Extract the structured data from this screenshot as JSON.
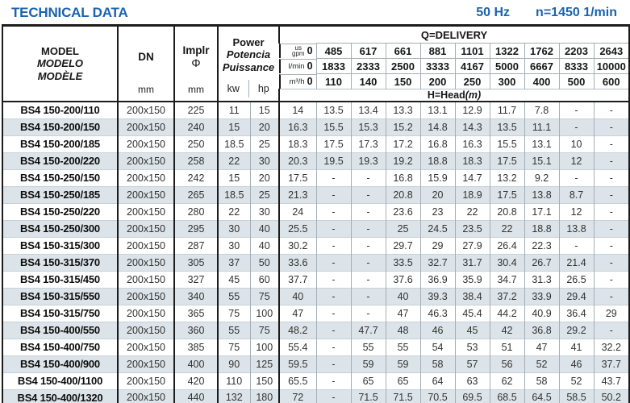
{
  "page": {
    "title": "TECHNICAL DATA",
    "frequency": "50 Hz",
    "speed": "n=1450 1/min",
    "accent_color": "#1b63ad",
    "stripe_color": "#dce4e9"
  },
  "header": {
    "model_lines": [
      "MODEL",
      "MODELO",
      "MODÈLE"
    ],
    "dn": {
      "label": "DN",
      "unit": "mm"
    },
    "impeller": {
      "label": "Implr",
      "symbol": "Φ",
      "unit": "mm"
    },
    "power": {
      "lines": [
        "Power",
        "Potencia",
        "Puissance"
      ],
      "unit_kw": "kw",
      "unit_hp": "hp"
    },
    "delivery": {
      "title": "Q=DELIVERY",
      "head_label": "H=Head",
      "head_unit": "(m)",
      "unit_rows": [
        {
          "label_lines": [
            "us",
            "gpm"
          ],
          "zero": "0",
          "values": [
            "485",
            "617",
            "661",
            "881",
            "1101",
            "1322",
            "1762",
            "2203",
            "2643"
          ]
        },
        {
          "label_lines": [
            "l/min"
          ],
          "zero": "0",
          "values": [
            "1833",
            "2333",
            "2500",
            "3333",
            "4167",
            "5000",
            "6667",
            "8333",
            "10000"
          ]
        },
        {
          "label_lines": [
            "m³/h"
          ],
          "zero": "0",
          "values": [
            "110",
            "140",
            "150",
            "200",
            "250",
            "300",
            "400",
            "500",
            "600"
          ]
        }
      ]
    }
  },
  "rows": [
    {
      "model": "BS4 150-200/110",
      "dn": "200x150",
      "impeller": "225",
      "kw": "11",
      "hp": "15",
      "head": [
        "14",
        "13.5",
        "13.4",
        "13.3",
        "13.1",
        "12.9",
        "11.7",
        "7.8",
        "-",
        "-"
      ]
    },
    {
      "model": "BS4 150-200/150",
      "dn": "200x150",
      "impeller": "240",
      "kw": "15",
      "hp": "20",
      "head": [
        "16.3",
        "15.5",
        "15.3",
        "15.2",
        "14.8",
        "14.3",
        "13.5",
        "11.1",
        "-",
        "-"
      ]
    },
    {
      "model": "BS4 150-200/185",
      "dn": "200x150",
      "impeller": "250",
      "kw": "18.5",
      "hp": "25",
      "head": [
        "18.3",
        "17.5",
        "17.3",
        "17.2",
        "16.8",
        "16.3",
        "15.5",
        "13.1",
        "10",
        "-"
      ]
    },
    {
      "model": "BS4 150-200/220",
      "dn": "200x150",
      "impeller": "258",
      "kw": "22",
      "hp": "30",
      "head": [
        "20.3",
        "19.5",
        "19.3",
        "19.2",
        "18.8",
        "18.3",
        "17.5",
        "15.1",
        "12",
        "-"
      ]
    },
    {
      "model": "BS4 150-250/150",
      "dn": "200x150",
      "impeller": "242",
      "kw": "15",
      "hp": "20",
      "head": [
        "17.5",
        "-",
        "-",
        "16.8",
        "15.9",
        "14.7",
        "13.2",
        "9.2",
        "-",
        "-"
      ]
    },
    {
      "model": "BS4 150-250/185",
      "dn": "200x150",
      "impeller": "265",
      "kw": "18.5",
      "hp": "25",
      "head": [
        "21.3",
        "-",
        "-",
        "20.8",
        "20",
        "18.9",
        "17.5",
        "13.8",
        "8.7",
        "-"
      ]
    },
    {
      "model": "BS4 150-250/220",
      "dn": "200x150",
      "impeller": "280",
      "kw": "22",
      "hp": "30",
      "head": [
        "24",
        "-",
        "-",
        "23.6",
        "23",
        "22",
        "20.8",
        "17.1",
        "12",
        "-"
      ]
    },
    {
      "model": "BS4 150-250/300",
      "dn": "200x150",
      "impeller": "295",
      "kw": "30",
      "hp": "40",
      "head": [
        "25.5",
        "-",
        "-",
        "25",
        "24.5",
        "23.5",
        "22",
        "18.8",
        "13.8",
        "-"
      ]
    },
    {
      "model": "BS4 150-315/300",
      "dn": "200x150",
      "impeller": "287",
      "kw": "30",
      "hp": "40",
      "head": [
        "30.2",
        "-",
        "-",
        "29.7",
        "29",
        "27.9",
        "26.4",
        "22.3",
        "-",
        "-"
      ]
    },
    {
      "model": "BS4 150-315/370",
      "dn": "200x150",
      "impeller": "305",
      "kw": "37",
      "hp": "50",
      "head": [
        "33.6",
        "-",
        "-",
        "33.5",
        "32.7",
        "31.7",
        "30.4",
        "26.7",
        "21.4",
        "-"
      ]
    },
    {
      "model": "BS4 150-315/450",
      "dn": "200x150",
      "impeller": "327",
      "kw": "45",
      "hp": "60",
      "head": [
        "37.7",
        "-",
        "-",
        "37.6",
        "36.9",
        "35.9",
        "34.7",
        "31.3",
        "26.5",
        "-"
      ]
    },
    {
      "model": "BS4 150-315/550",
      "dn": "200x150",
      "impeller": "340",
      "kw": "55",
      "hp": "75",
      "head": [
        "40",
        "-",
        "-",
        "40",
        "39.3",
        "38.4",
        "37.2",
        "33.9",
        "29.4",
        "-"
      ]
    },
    {
      "model": "BS4 150-315/750",
      "dn": "200x150",
      "impeller": "365",
      "kw": "75",
      "hp": "100",
      "head": [
        "47",
        "-",
        "-",
        "47",
        "46.3",
        "45.4",
        "44.2",
        "40.9",
        "36.4",
        "29"
      ]
    },
    {
      "model": "BS4 150-400/550",
      "dn": "200x150",
      "impeller": "360",
      "kw": "55",
      "hp": "75",
      "head": [
        "48.2",
        "-",
        "47.7",
        "48",
        "46",
        "45",
        "42",
        "36.8",
        "29.2",
        "-"
      ]
    },
    {
      "model": "BS4 150-400/750",
      "dn": "200x150",
      "impeller": "385",
      "kw": "75",
      "hp": "100",
      "head": [
        "55.4",
        "-",
        "55",
        "55",
        "54",
        "53",
        "51",
        "47",
        "41",
        "32.2"
      ]
    },
    {
      "model": "BS4 150-400/900",
      "dn": "200x150",
      "impeller": "400",
      "kw": "90",
      "hp": "125",
      "head": [
        "59.5",
        "-",
        "59",
        "59",
        "58",
        "57",
        "56",
        "52",
        "46",
        "37.7"
      ]
    },
    {
      "model": "BS4 150-400/1100",
      "dn": "200x150",
      "impeller": "420",
      "kw": "110",
      "hp": "150",
      "head": [
        "65.5",
        "-",
        "65",
        "65",
        "64",
        "63",
        "62",
        "58",
        "52",
        "43.7"
      ]
    },
    {
      "model": "BS4 150-400/1320",
      "dn": "200x150",
      "impeller": "440",
      "kw": "132",
      "hp": "180",
      "head": [
        "72",
        "-",
        "71.5",
        "71.5",
        "70.5",
        "69.5",
        "68.5",
        "64.5",
        "58.5",
        "50.2"
      ]
    }
  ]
}
